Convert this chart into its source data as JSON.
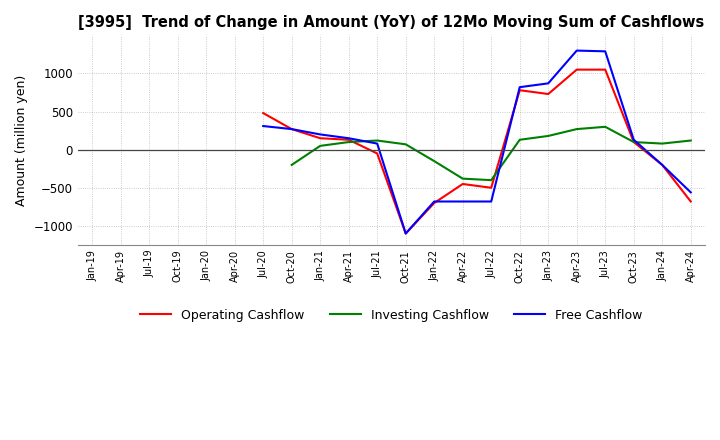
{
  "title": "[3995]  Trend of Change in Amount (YoY) of 12Mo Moving Sum of Cashflows",
  "ylabel": "Amount (million yen)",
  "ylim": [
    -1250,
    1500
  ],
  "yticks": [
    -1000,
    -500,
    0,
    500,
    1000
  ],
  "background_color": "#ffffff",
  "grid_color": "#aaaaaa",
  "dates": [
    "Jan-19",
    "Apr-19",
    "Jul-19",
    "Oct-19",
    "Jan-20",
    "Apr-20",
    "Jul-20",
    "Oct-20",
    "Jan-21",
    "Apr-21",
    "Jul-21",
    "Oct-21",
    "Jan-22",
    "Apr-22",
    "Jul-22",
    "Oct-22",
    "Jan-23",
    "Apr-23",
    "Jul-23",
    "Oct-23",
    "Jan-24",
    "Apr-24"
  ],
  "operating": [
    null,
    null,
    null,
    null,
    null,
    null,
    480,
    270,
    150,
    130,
    -50,
    -1100,
    -700,
    -450,
    -500,
    780,
    730,
    1050,
    1050,
    100,
    -200,
    -680
  ],
  "investing": [
    null,
    null,
    null,
    null,
    null,
    null,
    null,
    -200,
    50,
    100,
    120,
    70,
    -150,
    -380,
    -400,
    130,
    180,
    270,
    300,
    100,
    80,
    120
  ],
  "free": [
    null,
    null,
    null,
    null,
    null,
    null,
    310,
    270,
    200,
    150,
    80,
    -1100,
    -680,
    -680,
    -680,
    820,
    870,
    1300,
    1290,
    130,
    -200,
    -560
  ],
  "operating_color": "#ff0000",
  "investing_color": "#008000",
  "free_color": "#0000ff",
  "line_width": 1.5
}
